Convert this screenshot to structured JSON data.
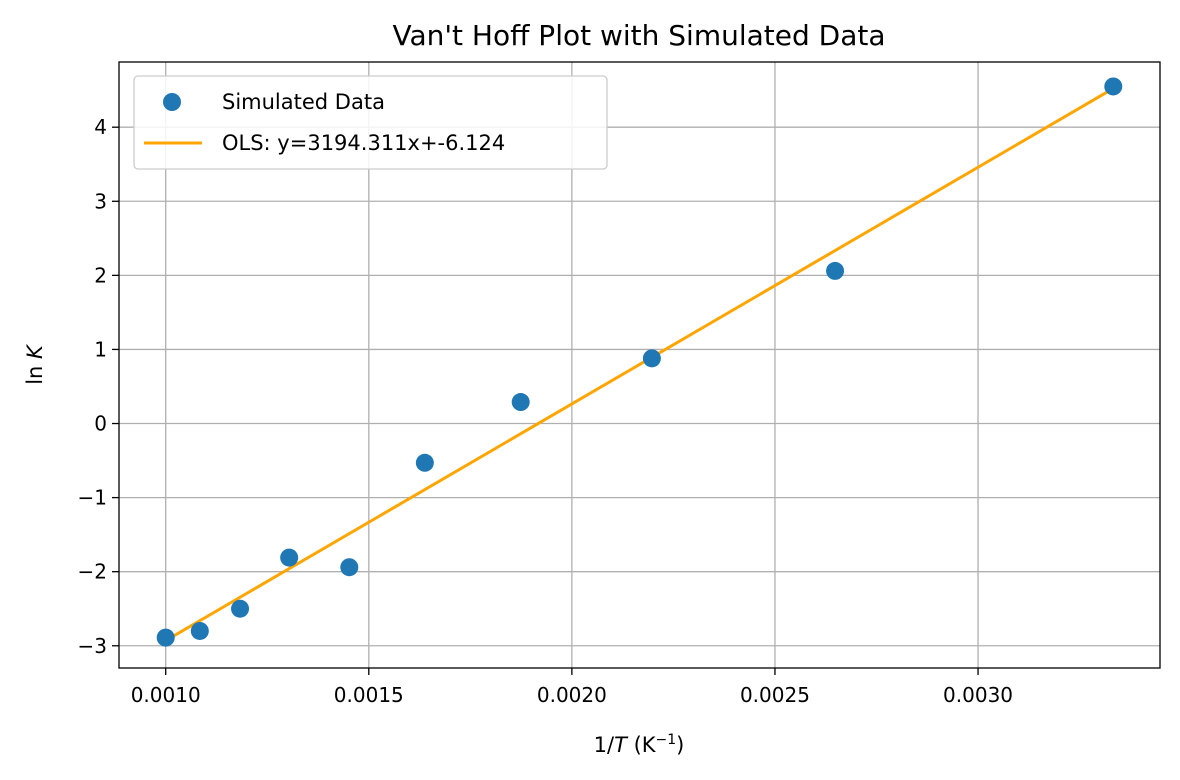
{
  "chart_data": {
    "type": "scatter",
    "title": "Van't Hoff Plot with Simulated Data",
    "xlabel": "1/T (K⁻¹)",
    "ylabel": "ln K",
    "xlim": [
      0.000885,
      0.003448
    ],
    "ylim": [
      -3.3,
      4.88
    ],
    "x_ticks": [
      0.001,
      0.0015,
      0.002,
      0.0025,
      0.003
    ],
    "x_tick_labels": [
      "0.0010",
      "0.0015",
      "0.0020",
      "0.0025",
      "0.0030"
    ],
    "y_ticks": [
      -3,
      -2,
      -1,
      0,
      1,
      2,
      3,
      4
    ],
    "y_tick_labels": [
      "−3",
      "−2",
      "−1",
      "0",
      "1",
      "2",
      "3",
      "4"
    ],
    "grid": true,
    "legend_position": "top-left",
    "series": [
      {
        "name": "Simulated Data",
        "kind": "scatter",
        "color": "#1f77b4",
        "x": [
          0.001,
          0.001084,
          0.001183,
          0.001304,
          0.001452,
          0.001638,
          0.001874,
          0.002197,
          0.002648,
          0.003333
        ],
        "y": [
          -2.89,
          -2.8,
          -2.5,
          -1.81,
          -1.94,
          -0.53,
          0.29,
          0.88,
          2.06,
          4.55
        ]
      },
      {
        "name": "OLS: y=3194.311x+-6.124",
        "kind": "line",
        "color": "#ffa500",
        "x": [
          0.001,
          0.003333
        ],
        "y": [
          -2.93,
          4.523
        ]
      }
    ]
  }
}
